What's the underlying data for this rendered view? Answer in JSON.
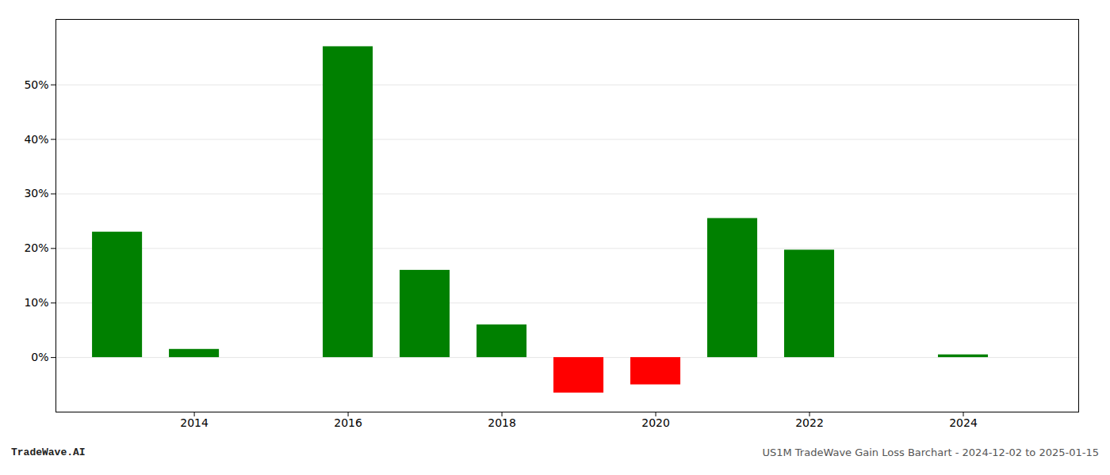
{
  "chart_data": {
    "type": "bar",
    "x": [
      2013,
      2014,
      2016,
      2017,
      2018,
      2019,
      2020,
      2021,
      2022,
      2024
    ],
    "values": [
      0.23,
      0.015,
      0.57,
      0.16,
      0.06,
      -0.065,
      -0.05,
      0.255,
      0.197,
      0.005
    ],
    "colors": [
      "#008000",
      "#008000",
      "#008000",
      "#008000",
      "#008000",
      "#ff0000",
      "#ff0000",
      "#008000",
      "#008000",
      "#008000"
    ],
    "xlim": [
      2012.2,
      2025.5
    ],
    "ylim": [
      -0.1,
      0.62
    ],
    "xticks": [
      2014,
      2016,
      2018,
      2020,
      2022,
      2024
    ],
    "yticks": [
      {
        "value": 0.0,
        "label": "0%"
      },
      {
        "value": 0.1,
        "label": "10%"
      },
      {
        "value": 0.2,
        "label": "20%"
      },
      {
        "value": 0.3,
        "label": "30%"
      },
      {
        "value": 0.4,
        "label": "40%"
      },
      {
        "value": 0.5,
        "label": "50%"
      }
    ],
    "grid": true,
    "annotations": [
      "TradeWave.AI",
      "US1M TradeWave Gain Loss Barchart - 2024-12-02 to 2025-01-15"
    ]
  }
}
